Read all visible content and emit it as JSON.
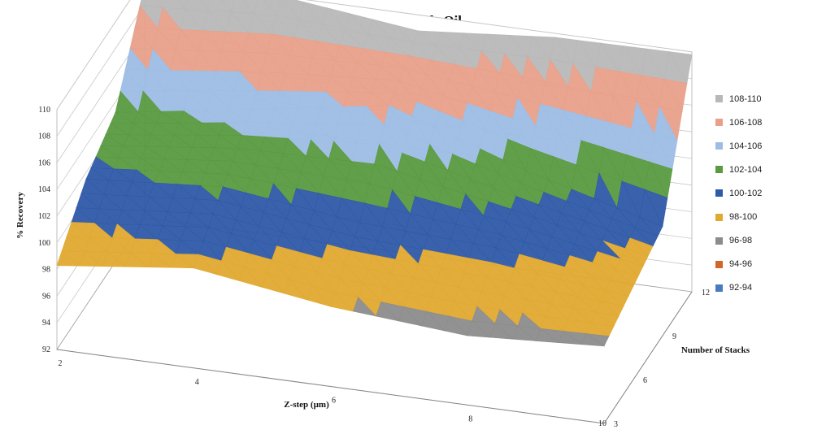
{
  "chart_data": {
    "type": "surface",
    "title": "100ppm Crude Oil",
    "xlabel": "Z-step (µm)",
    "ylabel": "% Recovery",
    "depth_label": "Number of Stacks",
    "x": [
      2,
      4,
      6,
      8,
      10
    ],
    "depth": [
      3,
      6,
      9,
      12
    ],
    "zlim": [
      92,
      110
    ],
    "z_ticks": [
      92,
      94,
      96,
      98,
      100,
      102,
      104,
      106,
      108,
      110
    ],
    "z": [
      [
        98.3,
        99.5,
        98.0,
        97.2,
        97.8
      ],
      [
        101.5,
        102.3,
        101.0,
        100.5,
        99.0
      ],
      [
        103.2,
        104.8,
        106.5,
        103.0,
        100.2
      ],
      [
        109.5,
        110.0,
        108.8,
        109.7,
        109.8
      ]
    ],
    "legend": [
      {
        "label": "108-110",
        "color": "#b8b8b8"
      },
      {
        "label": "106-108",
        "color": "#e8a08a"
      },
      {
        "label": "104-106",
        "color": "#9dbde4"
      },
      {
        "label": "102-104",
        "color": "#5a9a40"
      },
      {
        "label": "100-102",
        "color": "#2f5aa8"
      },
      {
        "label": "98-100",
        "color": "#e0a930"
      },
      {
        "label": "96-98",
        "color": "#8c8c8c"
      },
      {
        "label": "94-96",
        "color": "#d0662a"
      },
      {
        "label": "92-94",
        "color": "#4a7bbf"
      }
    ],
    "legend_position": "right",
    "grid": true
  }
}
